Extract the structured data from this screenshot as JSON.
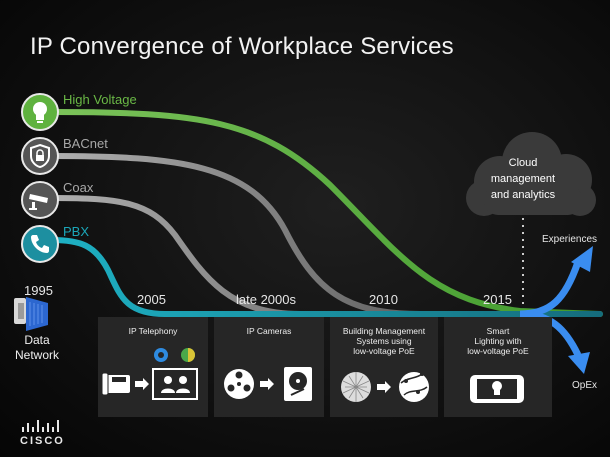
{
  "title": "IP Convergence of Workplace Services",
  "technologies": [
    {
      "label": "High Voltage",
      "color": "#6ab846",
      "icon": "lightbulb-icon"
    },
    {
      "label": "BACnet",
      "color": "#9a9a9a",
      "icon": "shield-lock-icon"
    },
    {
      "label": "Coax",
      "color": "#9a9a9a",
      "icon": "security-camera-icon"
    },
    {
      "label": "PBX",
      "color": "#1ba6b8",
      "icon": "phone-icon"
    }
  ],
  "timeline": {
    "start_year": "1995",
    "milestones": [
      "2005",
      "late 2000s",
      "2010",
      "2015"
    ]
  },
  "data_network": "Data\nNetwork",
  "cloud": "Cloud\nmanagement\nand analytics",
  "outcomes": {
    "upper": "Experiences",
    "lower": "OpEx"
  },
  "panels": [
    {
      "title": "IP Telephony",
      "icons": [
        "desk-phone-icon",
        "arrow-icon",
        "video-conference-icon",
        "webex-icon",
        "jabber-icon"
      ]
    },
    {
      "title": "IP Cameras",
      "icons": [
        "camera-reel-icon",
        "arrow-icon",
        "hard-drive-icon"
      ]
    },
    {
      "title": "Building Management\nSystems using\nlow-voltage PoE",
      "icons": [
        "network-mesh-icon",
        "arrow-icon",
        "globe-icon"
      ]
    },
    {
      "title": "Smart\nLighting with\nlow-voltage PoE",
      "icons": [
        "smartphone-bulb-icon"
      ]
    }
  ],
  "brand": "CISCO",
  "colors": {
    "network_blue": "#2a6fd6",
    "high_voltage_green": "#5cae3e",
    "legacy_gray": "#8a8a8a",
    "pbx_teal": "#1b8fa0",
    "panel_bg": "#262626"
  }
}
